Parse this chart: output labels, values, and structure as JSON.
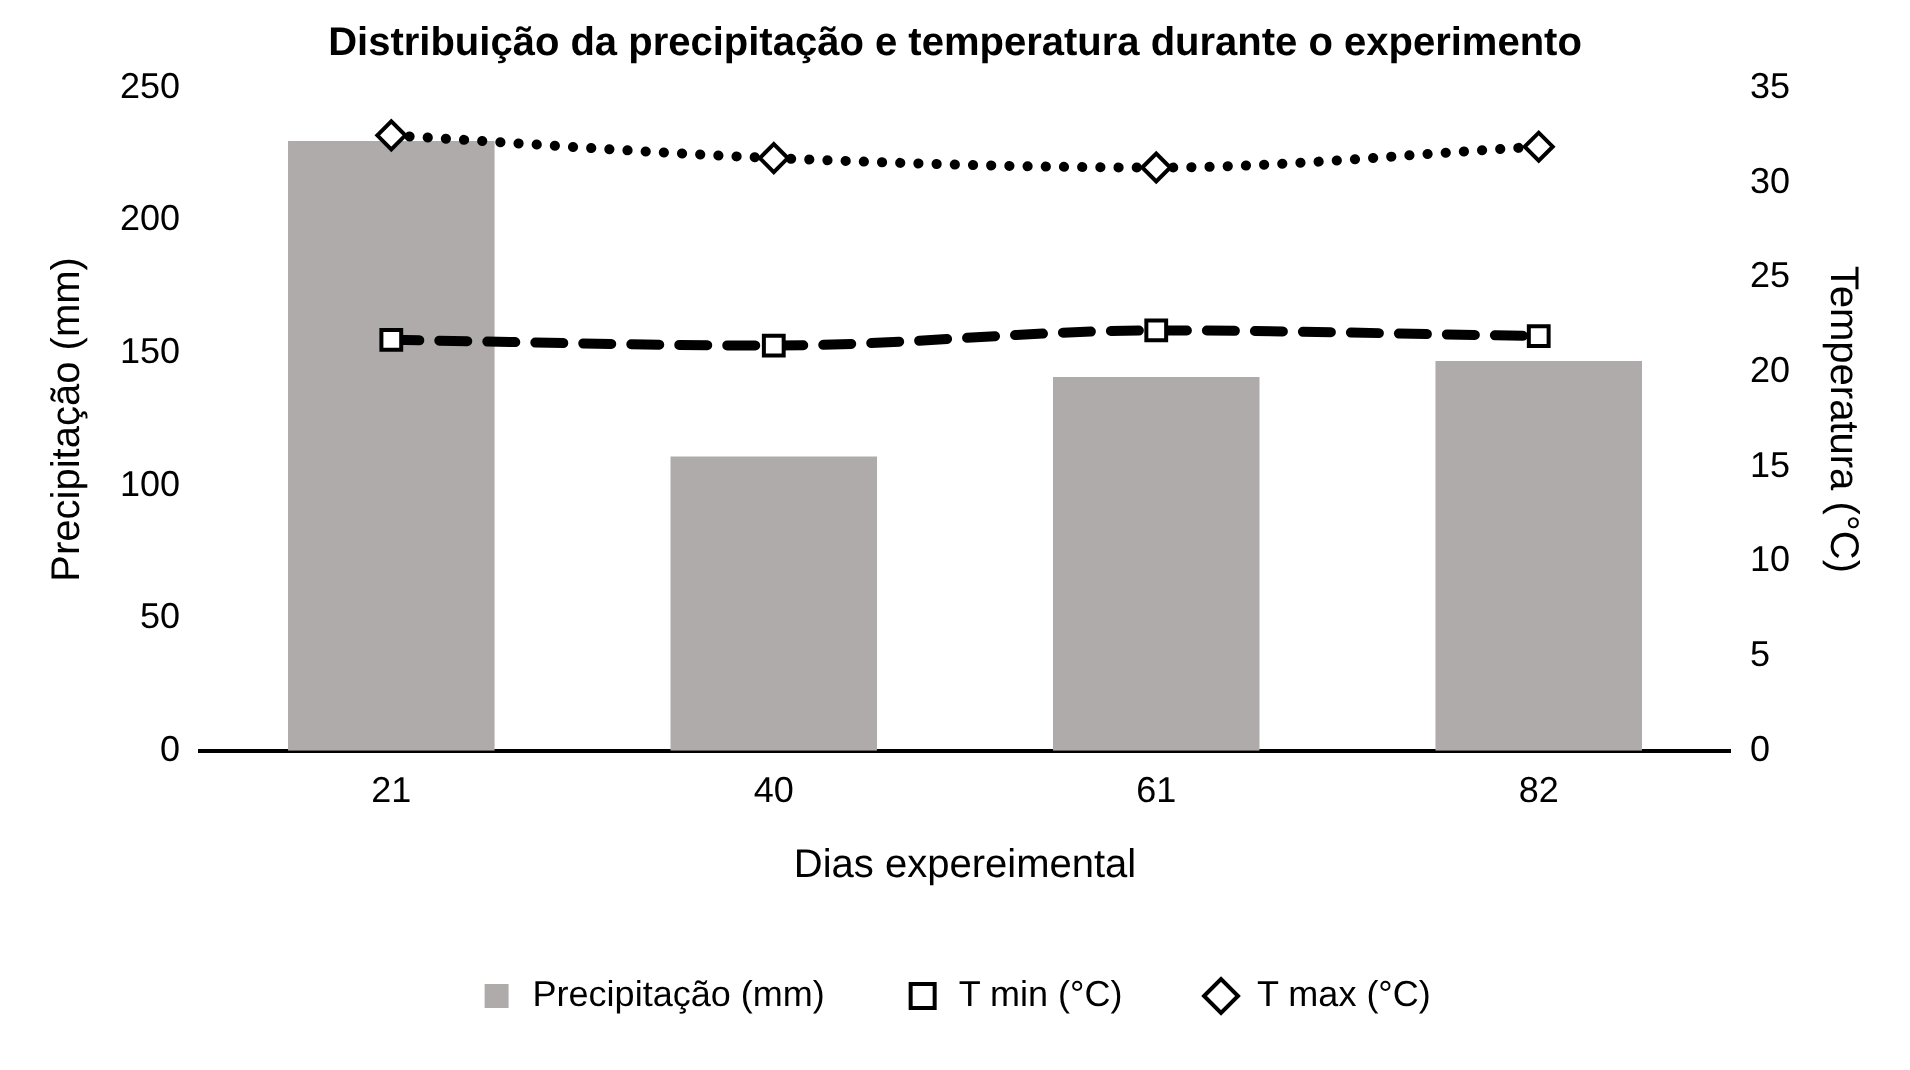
{
  "chart_data": {
    "type": "bar",
    "title": "Distribuição da precipitação e temperatura durante o experimento",
    "xlabel": "Dias expereimental",
    "ylabel": "Precipitação (mm)",
    "y2label": "Temperatura (°C)",
    "categories": [
      "21",
      "40",
      "61",
      "82"
    ],
    "series": [
      {
        "name": "Precipitação (mm)",
        "color": "#afabab",
        "values": [
          230,
          111,
          141,
          147
        ]
      },
      {
        "name": "T min (°C)",
        "type": "line",
        "axis": "y2",
        "color": "#000000",
        "line_style": "dashed",
        "marker": "square",
        "values": [
          21.7,
          21.4,
          22.2,
          21.9
        ]
      },
      {
        "name": "T max (°C)",
        "type": "line",
        "axis": "y2",
        "color": "#000000",
        "line_style": "dotted",
        "marker": "diamond",
        "values": [
          32.5,
          31.3,
          30.8,
          31.9
        ]
      }
    ],
    "ylim": [
      0,
      250
    ],
    "yticks": [
      0,
      50,
      100,
      150,
      200,
      250
    ],
    "y2lim": [
      0,
      35
    ],
    "y2ticks": [
      0,
      5,
      10,
      15,
      20,
      25,
      30,
      35
    ],
    "grid": false,
    "legend": "bottom"
  }
}
